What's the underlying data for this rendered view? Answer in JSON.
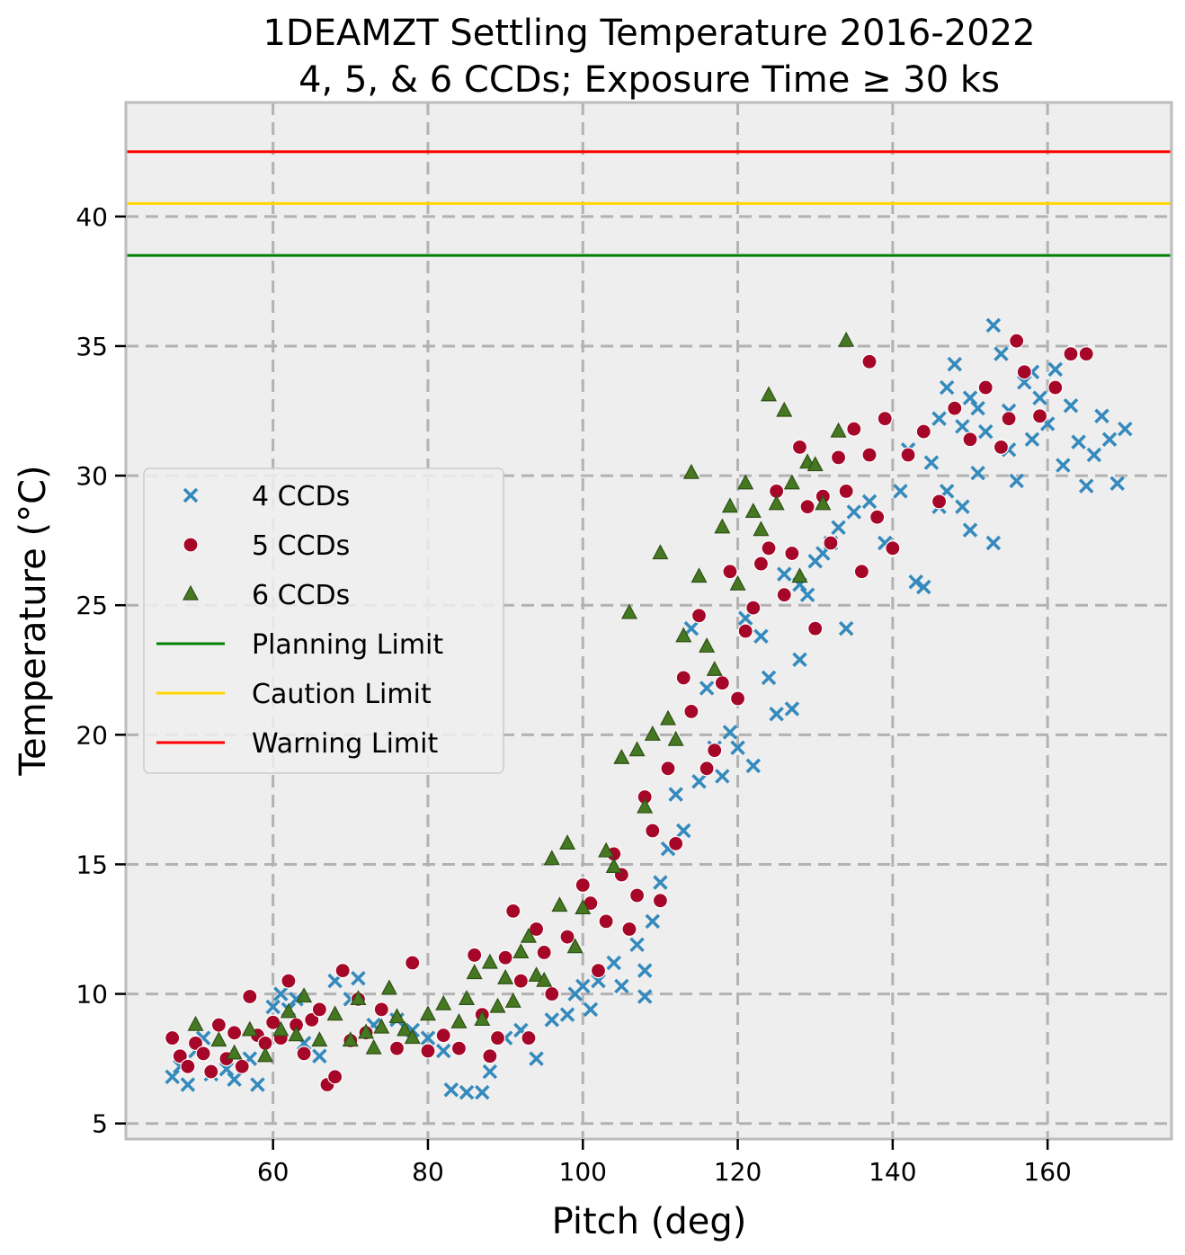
{
  "chart_data": {
    "type": "scatter",
    "title_line1": "1DEAMZT Settling Temperature 2016-2022",
    "title_line2": "4, 5, & 6 CCDs; Exposure Time ≥ 30 ks",
    "xlabel": "Pitch (deg)",
    "ylabel": "Temperature (°C)",
    "xlim": [
      41,
      176
    ],
    "ylim": [
      4.4,
      44.4
    ],
    "xticks": [
      60,
      80,
      100,
      120,
      140,
      160
    ],
    "yticks": [
      5,
      10,
      15,
      20,
      25,
      30,
      35,
      40
    ],
    "grid": true,
    "legend_position": "center-left",
    "limits": [
      {
        "name": "Planning Limit",
        "value": 38.5,
        "color": "#008000"
      },
      {
        "name": "Caution Limit",
        "value": 40.5,
        "color": "#ffd700"
      },
      {
        "name": "Warning Limit",
        "value": 42.5,
        "color": "#ff0000"
      }
    ],
    "series": [
      {
        "name": "4 CCDs",
        "marker": "x",
        "color": "#348abd",
        "points": [
          [
            47,
            6.8
          ],
          [
            48,
            7.2
          ],
          [
            49,
            6.5
          ],
          [
            50,
            7.8
          ],
          [
            51,
            8.3
          ],
          [
            52,
            6.9
          ],
          [
            54,
            7.1
          ],
          [
            55,
            6.7
          ],
          [
            57,
            7.5
          ],
          [
            58,
            6.5
          ],
          [
            60,
            9.5
          ],
          [
            61,
            10.0
          ],
          [
            62,
            9.4
          ],
          [
            63,
            9.8
          ],
          [
            64,
            8.1
          ],
          [
            66,
            7.6
          ],
          [
            68,
            10.5
          ],
          [
            70,
            9.8
          ],
          [
            71,
            10.6
          ],
          [
            73,
            8.8
          ],
          [
            76,
            9.0
          ],
          [
            78,
            8.6
          ],
          [
            80,
            8.3
          ],
          [
            82,
            7.8
          ],
          [
            83,
            6.3
          ],
          [
            85,
            6.2
          ],
          [
            87,
            6.2
          ],
          [
            88,
            7.0
          ],
          [
            90,
            8.3
          ],
          [
            92,
            8.6
          ],
          [
            94,
            7.5
          ],
          [
            96,
            9.0
          ],
          [
            98,
            9.2
          ],
          [
            99,
            10.0
          ],
          [
            100,
            10.3
          ],
          [
            101,
            9.4
          ],
          [
            102,
            10.5
          ],
          [
            104,
            11.2
          ],
          [
            105,
            10.3
          ],
          [
            107,
            11.9
          ],
          [
            108,
            10.9
          ],
          [
            108,
            9.9
          ],
          [
            109,
            12.8
          ],
          [
            110,
            14.3
          ],
          [
            111,
            15.6
          ],
          [
            112,
            17.7
          ],
          [
            113,
            16.3
          ],
          [
            114,
            24.1
          ],
          [
            115,
            18.2
          ],
          [
            116,
            21.8
          ],
          [
            117,
            19.5
          ],
          [
            118,
            18.4
          ],
          [
            119,
            20.1
          ],
          [
            120,
            19.5
          ],
          [
            121,
            24.5
          ],
          [
            122,
            18.8
          ],
          [
            123,
            23.8
          ],
          [
            124,
            22.2
          ],
          [
            125,
            20.8
          ],
          [
            126,
            26.2
          ],
          [
            127,
            21.0
          ],
          [
            128,
            25.8
          ],
          [
            128,
            22.9
          ],
          [
            129,
            25.4
          ],
          [
            130,
            26.7
          ],
          [
            131,
            27.0
          ],
          [
            132,
            27.4
          ],
          [
            133,
            28.0
          ],
          [
            134,
            24.1
          ],
          [
            135,
            28.6
          ],
          [
            137,
            29.0
          ],
          [
            139,
            27.4
          ],
          [
            141,
            29.4
          ],
          [
            142,
            31.0
          ],
          [
            143,
            25.9
          ],
          [
            144,
            25.7
          ],
          [
            145,
            30.5
          ],
          [
            146,
            32.2
          ],
          [
            147,
            29.4
          ],
          [
            148,
            34.3
          ],
          [
            149,
            28.8
          ],
          [
            150,
            33.0
          ],
          [
            151,
            30.1
          ],
          [
            152,
            31.7
          ],
          [
            153,
            27.4
          ],
          [
            154,
            34.7
          ],
          [
            155,
            32.5
          ],
          [
            156,
            29.8
          ],
          [
            157,
            33.6
          ],
          [
            158,
            31.4
          ],
          [
            159,
            33.0
          ],
          [
            160,
            32.0
          ],
          [
            161,
            34.1
          ],
          [
            162,
            30.4
          ],
          [
            163,
            32.7
          ],
          [
            164,
            31.3
          ],
          [
            165,
            29.6
          ],
          [
            166,
            30.8
          ],
          [
            167,
            32.3
          ],
          [
            168,
            31.4
          ],
          [
            169,
            29.7
          ],
          [
            170,
            31.8
          ],
          [
            153,
            35.8
          ],
          [
            150,
            27.9
          ],
          [
            147,
            33.4
          ],
          [
            151,
            32.6
          ],
          [
            155,
            31.0
          ],
          [
            146,
            28.8
          ],
          [
            158,
            34.0
          ],
          [
            149,
            31.9
          ]
        ]
      },
      {
        "name": "5 CCDs",
        "marker": "o",
        "color": "#a60628",
        "points": [
          [
            47,
            8.3
          ],
          [
            48,
            7.6
          ],
          [
            49,
            7.2
          ],
          [
            50,
            8.1
          ],
          [
            51,
            7.7
          ],
          [
            52,
            7.0
          ],
          [
            53,
            8.8
          ],
          [
            54,
            7.5
          ],
          [
            55,
            8.5
          ],
          [
            56,
            7.2
          ],
          [
            57,
            9.9
          ],
          [
            58,
            8.4
          ],
          [
            59,
            8.1
          ],
          [
            60,
            8.9
          ],
          [
            61,
            8.3
          ],
          [
            62,
            10.5
          ],
          [
            63,
            8.8
          ],
          [
            64,
            7.7
          ],
          [
            65,
            9.0
          ],
          [
            66,
            9.4
          ],
          [
            67,
            6.5
          ],
          [
            68,
            6.8
          ],
          [
            69,
            10.9
          ],
          [
            70,
            8.2
          ],
          [
            71,
            9.8
          ],
          [
            72,
            8.5
          ],
          [
            74,
            9.4
          ],
          [
            76,
            7.9
          ],
          [
            78,
            11.2
          ],
          [
            80,
            7.8
          ],
          [
            82,
            8.4
          ],
          [
            84,
            7.9
          ],
          [
            86,
            11.5
          ],
          [
            87,
            9.2
          ],
          [
            88,
            7.6
          ],
          [
            89,
            8.3
          ],
          [
            90,
            11.4
          ],
          [
            91,
            13.2
          ],
          [
            92,
            10.5
          ],
          [
            93,
            8.3
          ],
          [
            94,
            12.5
          ],
          [
            95,
            11.6
          ],
          [
            96,
            10.0
          ],
          [
            98,
            12.2
          ],
          [
            100,
            14.2
          ],
          [
            101,
            13.5
          ],
          [
            102,
            10.9
          ],
          [
            103,
            12.8
          ],
          [
            104,
            15.4
          ],
          [
            105,
            14.6
          ],
          [
            106,
            12.5
          ],
          [
            107,
            13.8
          ],
          [
            108,
            17.6
          ],
          [
            109,
            16.3
          ],
          [
            110,
            13.6
          ],
          [
            111,
            18.7
          ],
          [
            112,
            15.8
          ],
          [
            113,
            22.2
          ],
          [
            114,
            20.9
          ],
          [
            115,
            24.6
          ],
          [
            116,
            18.7
          ],
          [
            117,
            19.4
          ],
          [
            118,
            22.0
          ],
          [
            119,
            26.3
          ],
          [
            120,
            21.4
          ],
          [
            121,
            24.0
          ],
          [
            122,
            24.9
          ],
          [
            123,
            26.6
          ],
          [
            124,
            27.2
          ],
          [
            125,
            29.4
          ],
          [
            126,
            25.4
          ],
          [
            127,
            27.0
          ],
          [
            128,
            31.1
          ],
          [
            129,
            28.8
          ],
          [
            130,
            24.1
          ],
          [
            131,
            29.2
          ],
          [
            132,
            27.4
          ],
          [
            133,
            30.7
          ],
          [
            134,
            29.4
          ],
          [
            135,
            31.8
          ],
          [
            136,
            26.3
          ],
          [
            137,
            30.8
          ],
          [
            138,
            28.4
          ],
          [
            139,
            32.2
          ],
          [
            140,
            27.2
          ],
          [
            142,
            30.8
          ],
          [
            144,
            31.7
          ],
          [
            146,
            29.0
          ],
          [
            148,
            32.6
          ],
          [
            150,
            31.4
          ],
          [
            152,
            33.4
          ],
          [
            154,
            31.1
          ],
          [
            155,
            32.2
          ],
          [
            156,
            35.2
          ],
          [
            157,
            34.0
          ],
          [
            159,
            32.3
          ],
          [
            161,
            33.4
          ],
          [
            163,
            34.7
          ],
          [
            165,
            34.7
          ],
          [
            137,
            34.4
          ]
        ]
      },
      {
        "name": "6 CCDs",
        "marker": "^",
        "color": "#467821",
        "points": [
          [
            50,
            8.8
          ],
          [
            53,
            8.2
          ],
          [
            55,
            7.7
          ],
          [
            57,
            8.6
          ],
          [
            59,
            7.6
          ],
          [
            61,
            8.6
          ],
          [
            62,
            9.3
          ],
          [
            63,
            8.4
          ],
          [
            64,
            9.9
          ],
          [
            66,
            8.2
          ],
          [
            68,
            9.2
          ],
          [
            70,
            8.2
          ],
          [
            71,
            9.8
          ],
          [
            72,
            8.5
          ],
          [
            73,
            7.9
          ],
          [
            74,
            8.7
          ],
          [
            75,
            10.2
          ],
          [
            76,
            9.1
          ],
          [
            77,
            8.6
          ],
          [
            78,
            8.3
          ],
          [
            80,
            9.2
          ],
          [
            82,
            9.6
          ],
          [
            84,
            8.9
          ],
          [
            85,
            9.8
          ],
          [
            86,
            10.8
          ],
          [
            87,
            9.0
          ],
          [
            88,
            11.2
          ],
          [
            89,
            9.5
          ],
          [
            90,
            10.6
          ],
          [
            91,
            9.7
          ],
          [
            92,
            11.6
          ],
          [
            93,
            12.2
          ],
          [
            94,
            10.7
          ],
          [
            95,
            10.5
          ],
          [
            96,
            15.2
          ],
          [
            97,
            13.4
          ],
          [
            98,
            15.8
          ],
          [
            99,
            11.8
          ],
          [
            100,
            13.3
          ],
          [
            103,
            15.5
          ],
          [
            104,
            14.9
          ],
          [
            105,
            19.1
          ],
          [
            106,
            24.7
          ],
          [
            107,
            19.4
          ],
          [
            108,
            17.2
          ],
          [
            109,
            20.0
          ],
          [
            110,
            27.0
          ],
          [
            111,
            20.6
          ],
          [
            112,
            19.8
          ],
          [
            113,
            23.8
          ],
          [
            114,
            30.1
          ],
          [
            115,
            26.1
          ],
          [
            116,
            23.4
          ],
          [
            117,
            22.5
          ],
          [
            118,
            28.0
          ],
          [
            119,
            28.8
          ],
          [
            120,
            25.8
          ],
          [
            121,
            29.7
          ],
          [
            122,
            28.6
          ],
          [
            123,
            27.9
          ],
          [
            124,
            33.1
          ],
          [
            125,
            28.9
          ],
          [
            126,
            32.5
          ],
          [
            127,
            29.7
          ],
          [
            128,
            26.1
          ],
          [
            129,
            30.5
          ],
          [
            130,
            30.4
          ],
          [
            131,
            28.9
          ],
          [
            133,
            31.7
          ],
          [
            134,
            35.2
          ]
        ]
      }
    ]
  }
}
